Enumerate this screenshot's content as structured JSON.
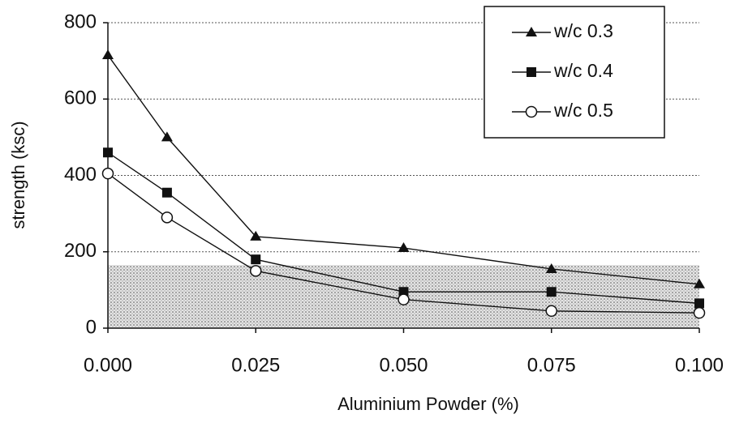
{
  "chart_data": {
    "type": "line",
    "x_label": "Aluminium Powder (%)",
    "y_label": "strength (ksc)",
    "x": [
      0,
      0.01,
      0.025,
      0.05,
      0.075,
      0.1
    ],
    "series": [
      {
        "name": "w/c 0.3",
        "color": "#111111",
        "marker": "triangle",
        "values": [
          715,
          500,
          240,
          210,
          155,
          115
        ]
      },
      {
        "name": "w/c 0.4",
        "color": "#111111",
        "marker": "square",
        "values": [
          460,
          355,
          180,
          95,
          95,
          65
        ]
      },
      {
        "name": "w/c 0.5",
        "color": "#111111",
        "marker": "circle",
        "values": [
          405,
          290,
          150,
          75,
          45,
          40
        ]
      }
    ],
    "shaded_range": [
      0,
      165
    ],
    "xlim": [
      0,
      0.1
    ],
    "ylim": [
      0,
      800
    ],
    "xticks": [
      {
        "value": 0,
        "label": "0.000"
      },
      {
        "value": 0.025,
        "label": "0.025"
      },
      {
        "value": 0.05,
        "label": "0.050"
      },
      {
        "value": 0.075,
        "label": "0.075"
      },
      {
        "value": 0.1,
        "label": "0.100"
      }
    ],
    "yticks": [
      0,
      200,
      400,
      600,
      800
    ],
    "grid": true,
    "legend": "top-right"
  }
}
